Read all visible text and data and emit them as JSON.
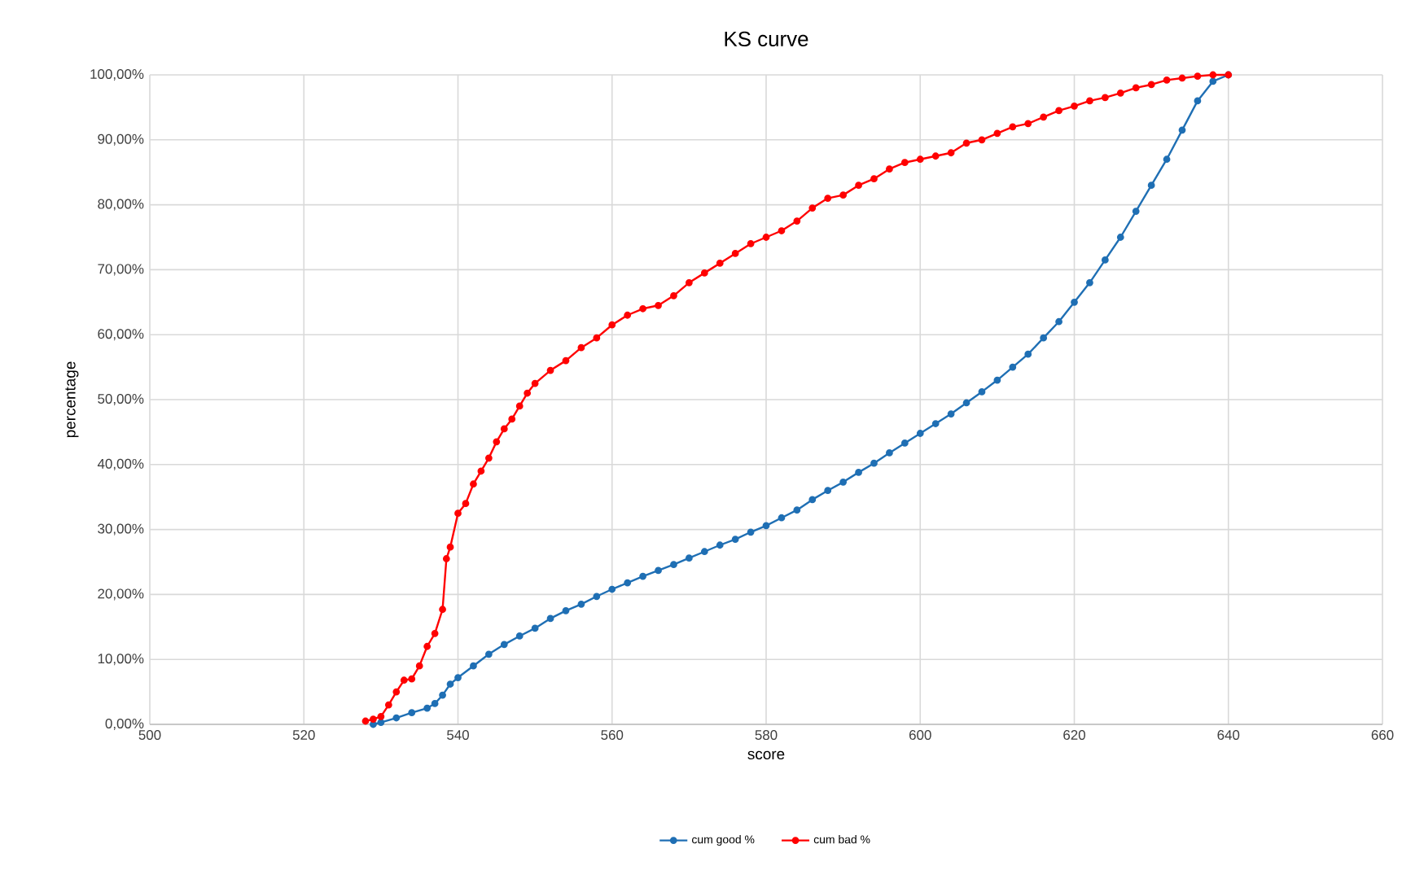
{
  "chart_data": {
    "type": "line",
    "title": "KS curve",
    "xlabel": "score",
    "ylabel": "percentage",
    "xlim": [
      500,
      660
    ],
    "xticks": [
      500,
      520,
      540,
      560,
      580,
      600,
      620,
      640,
      660
    ],
    "ylim": [
      0,
      100
    ],
    "yticks": [
      {
        "value": 0,
        "label": "0,00%"
      },
      {
        "value": 10,
        "label": "10,00%"
      },
      {
        "value": 20,
        "label": "20,00%"
      },
      {
        "value": 30,
        "label": "30,00%"
      },
      {
        "value": 40,
        "label": "40,00%"
      },
      {
        "value": 50,
        "label": "50,00%"
      },
      {
        "value": 60,
        "label": "60,00%"
      },
      {
        "value": 70,
        "label": "70,00%"
      },
      {
        "value": 80,
        "label": "80,00%"
      },
      {
        "value": 90,
        "label": "90,00%"
      },
      {
        "value": 100,
        "label": "100,00%"
      }
    ],
    "grid": true,
    "legend": "bottom",
    "marker": "circle",
    "line_style": "solid",
    "series": [
      {
        "name": "cum good %",
        "color": "#1f6fb4",
        "x": [
          529,
          530,
          532,
          534,
          536,
          537,
          538,
          539,
          540,
          542,
          544,
          546,
          548,
          550,
          552,
          554,
          556,
          558,
          560,
          562,
          564,
          566,
          568,
          570,
          572,
          574,
          576,
          578,
          580,
          582,
          584,
          586,
          588,
          590,
          592,
          594,
          596,
          598,
          600,
          602,
          604,
          606,
          608,
          610,
          612,
          614,
          616,
          618,
          620,
          622,
          624,
          626,
          628,
          630,
          632,
          634,
          636,
          638,
          640
        ],
        "values": [
          0,
          0.3,
          1,
          1.8,
          2.5,
          3.2,
          4.5,
          6.2,
          7.2,
          9,
          10.8,
          12.3,
          13.6,
          14.8,
          16.3,
          17.5,
          18.5,
          19.7,
          20.8,
          21.8,
          22.8,
          23.7,
          24.6,
          25.6,
          26.6,
          27.6,
          28.5,
          29.6,
          30.6,
          31.8,
          33,
          34.6,
          36,
          37.3,
          38.8,
          40.2,
          41.8,
          43.3,
          44.8,
          46.3,
          47.8,
          49.5,
          51.2,
          53,
          55,
          57,
          59.5,
          62,
          65,
          68,
          71.5,
          75,
          79,
          83,
          87,
          91.5,
          96,
          99,
          100
        ]
      },
      {
        "name": "cum bad %",
        "color": "#ff0000",
        "x": [
          528,
          529,
          530,
          531,
          532,
          533,
          534,
          535,
          536,
          537,
          538,
          538.5,
          539,
          540,
          541,
          542,
          543,
          544,
          545,
          546,
          547,
          548,
          549,
          550,
          552,
          554,
          556,
          558,
          560,
          562,
          564,
          566,
          568,
          570,
          572,
          574,
          576,
          578,
          580,
          582,
          584,
          586,
          588,
          590,
          592,
          594,
          596,
          598,
          600,
          602,
          604,
          606,
          608,
          610,
          612,
          614,
          616,
          618,
          620,
          622,
          624,
          626,
          628,
          630,
          632,
          634,
          636,
          638,
          640
        ],
        "values": [
          0.5,
          0.8,
          1.2,
          3,
          5,
          6.8,
          7,
          9,
          12,
          14,
          17.7,
          25.5,
          27.3,
          32.5,
          34,
          37,
          39,
          41,
          43.5,
          45.5,
          47,
          49,
          51,
          52.5,
          54.5,
          56,
          58,
          59.5,
          61.5,
          63,
          64,
          64.5,
          66,
          68,
          69.5,
          71,
          72.5,
          74,
          75,
          76,
          77.5,
          79.5,
          81,
          81.5,
          83,
          84,
          85.5,
          86.5,
          87,
          87.5,
          88,
          89.5,
          90,
          91,
          92,
          92.5,
          93.5,
          94.5,
          95.2,
          96,
          96.5,
          97.2,
          98,
          98.5,
          99.2,
          99.5,
          99.8,
          100,
          100
        ]
      }
    ]
  }
}
